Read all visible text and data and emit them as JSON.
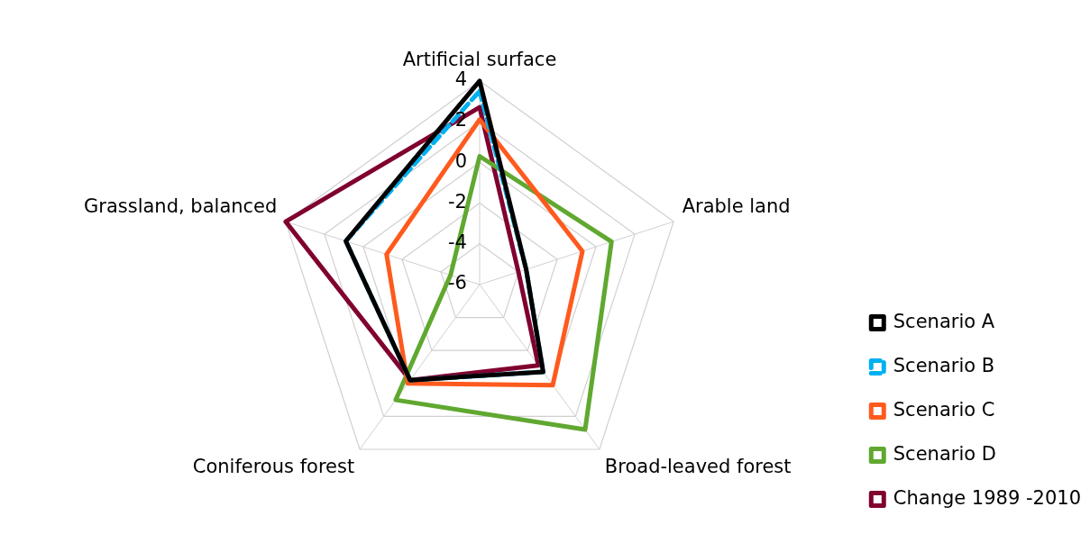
{
  "chart_data": {
    "type": "radar",
    "categories": [
      "Artificial surface",
      "Arable land",
      "Broad-leaved forest",
      "Coniferous forest",
      "Grassland, balanced"
    ],
    "ylim": [
      -6,
      4
    ],
    "yticks": [
      -6,
      -4,
      -2,
      0,
      2,
      4
    ],
    "grid": true,
    "legend": "bottom right",
    "marker": "none",
    "line_style": "solid",
    "series": [
      {
        "name": "Scenario A",
        "color": "#000000",
        "values": [
          4,
          -3.6,
          -0.7,
          -0.2,
          0.9
        ]
      },
      {
        "name": "Scenario B",
        "color": "#00b0f0",
        "line_style": "dashed",
        "values": [
          3.5,
          -3.6,
          -0.7,
          -0.2,
          0.9
        ]
      },
      {
        "name": "Scenario C",
        "color": "#ff5a1e",
        "values": [
          2.1,
          -0.7,
          0.1,
          0,
          -1.2
        ]
      },
      {
        "name": "Scenario D",
        "color": "#60a830",
        "values": [
          0.3,
          0.8,
          2.8,
          1,
          -4.5
        ]
      },
      {
        "name": "Change 1989 -2010",
        "color": "#800030",
        "values": [
          2.7,
          -4,
          -1.1,
          -0.2,
          4
        ]
      }
    ]
  }
}
